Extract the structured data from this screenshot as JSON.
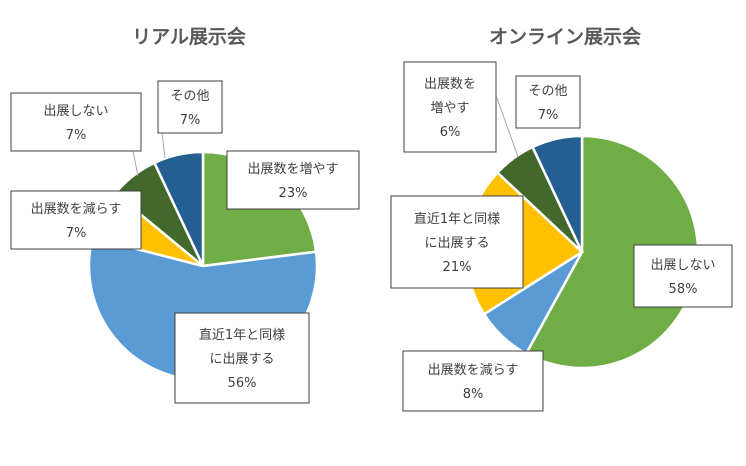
{
  "chart_data": [
    {
      "type": "pie",
      "title": "リアル展示会",
      "start_angle_deg": 0,
      "direction": "clockwise",
      "slices": [
        {
          "category": "出展数を増やす",
          "percent_label": "23%",
          "value": 23,
          "color": "#70ad47",
          "label_lines": [
            "出展数を増やす",
            "23%"
          ]
        },
        {
          "category": "直近1年と同様に出展する",
          "percent_label": "56%",
          "value": 56,
          "color": "#5b9bd5",
          "label_lines": [
            "直近1年と同様",
            "に出展する",
            "56%"
          ]
        },
        {
          "category": "出展数を減らす",
          "percent_label": "7%",
          "value": 7,
          "color": "#ffc000",
          "label_lines": [
            "出展数を減らす",
            "7%"
          ]
        },
        {
          "category": "出展しない",
          "percent_label": "7%",
          "value": 7,
          "color": "#43682b",
          "label_lines": [
            "出展しない",
            "7%"
          ]
        },
        {
          "category": "その他",
          "percent_label": "7%",
          "value": 7,
          "color": "#255e91",
          "label_lines": [
            "その他",
            "7%"
          ]
        }
      ]
    },
    {
      "type": "pie",
      "title": "オンライン展示会",
      "start_angle_deg": 0,
      "direction": "clockwise",
      "slices": [
        {
          "category": "出展しない",
          "percent_label": "58%",
          "value": 58,
          "color": "#70ad47",
          "label_lines": [
            "出展しない",
            "58%"
          ]
        },
        {
          "category": "出展数を減らす",
          "percent_label": "8%",
          "value": 8,
          "color": "#5b9bd5",
          "label_lines": [
            "出展数を減らす",
            "8%"
          ]
        },
        {
          "category": "直近1年と同様に出展する",
          "percent_label": "21%",
          "value": 21,
          "color": "#ffc000",
          "label_lines": [
            "直近1年と同様",
            "に出展する",
            "21%"
          ]
        },
        {
          "category": "出展数を増やす",
          "percent_label": "6%",
          "value": 6,
          "color": "#43682b",
          "label_lines": [
            "出展数を",
            "増やす",
            "6%"
          ]
        },
        {
          "category": "その他",
          "percent_label": "7%",
          "value": 7,
          "color": "#255e91",
          "label_lines": [
            "その他",
            "7%"
          ]
        }
      ]
    }
  ]
}
